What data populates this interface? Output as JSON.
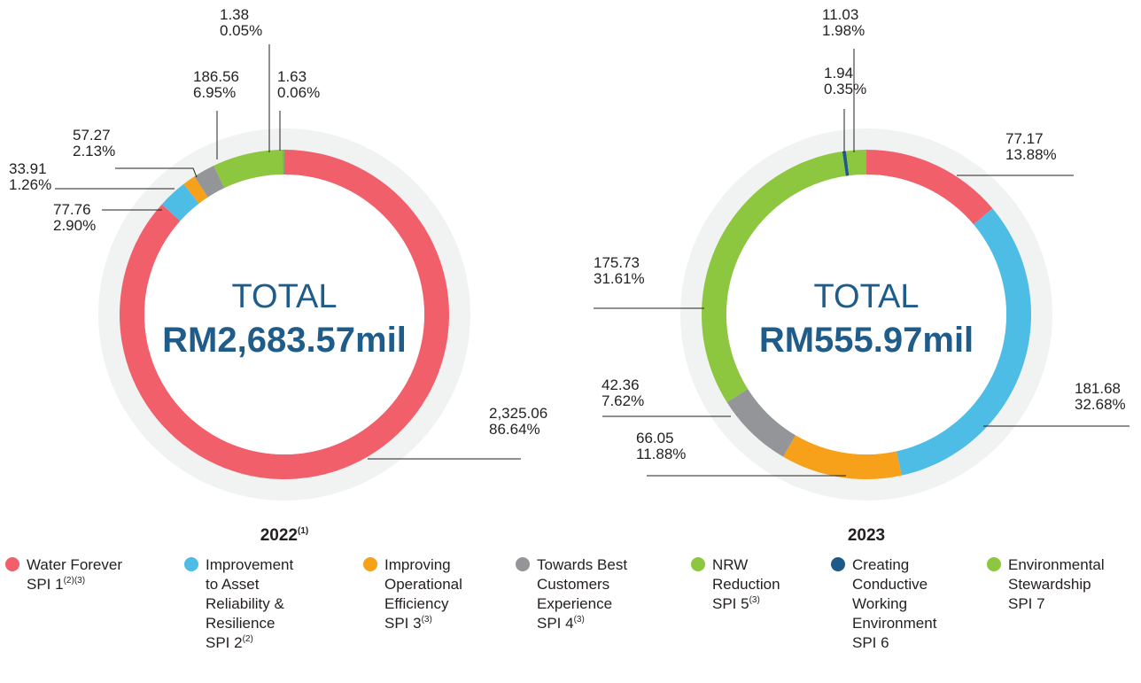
{
  "chart_data": [
    {
      "type": "donut",
      "title": "2022",
      "title_sup": "(1)",
      "center_label": "TOTAL",
      "total_label": "RM2,683.57mil",
      "values": [
        2325.06,
        77.76,
        33.91,
        57.27,
        186.56,
        1.38,
        1.63
      ],
      "value_labels": [
        "2,325.06",
        "77.76",
        "33.91",
        "57.27",
        "186.56",
        "1.38",
        "1.63"
      ],
      "percents": [
        86.64,
        2.9,
        1.26,
        2.13,
        6.95,
        0.05,
        0.06
      ],
      "percent_labels": [
        "86.64%",
        "2.90%",
        "1.26%",
        "2.13%",
        "6.95%",
        "0.05%",
        "0.06%"
      ]
    },
    {
      "type": "donut",
      "title": "2023",
      "center_label": "TOTAL",
      "total_label": "RM555.97mil",
      "values": [
        77.17,
        181.68,
        66.05,
        42.36,
        175.73,
        1.94,
        11.03
      ],
      "value_labels": [
        "77.17",
        "181.68",
        "66.05",
        "42.36",
        "175.73",
        "1.94",
        "11.03"
      ],
      "percents": [
        13.88,
        32.68,
        11.88,
        7.62,
        31.61,
        0.35,
        1.98
      ],
      "percent_labels": [
        "13.88%",
        "32.68%",
        "11.88%",
        "7.62%",
        "31.61%",
        "0.35%",
        "1.98%"
      ]
    }
  ],
  "legend": [
    {
      "lines": [
        "Water Forever"
      ],
      "spi": "SPI 1",
      "sup": "(2)(3)",
      "color": "#f15f6b"
    },
    {
      "lines": [
        "Improvement",
        "to Asset",
        "Reliability &",
        "Resilience"
      ],
      "spi": "SPI 2",
      "sup": "(2)",
      "color": "#4dbde6"
    },
    {
      "lines": [
        "Improving",
        "Operational",
        "Efficiency"
      ],
      "spi": "SPI 3",
      "sup": "(3)",
      "color": "#f7a11a"
    },
    {
      "lines": [
        "Towards Best",
        "Customers",
        "Experience"
      ],
      "spi": "SPI 4",
      "sup": "(3)",
      "color": "#939598"
    },
    {
      "lines": [
        "NRW",
        "Reduction"
      ],
      "spi": "SPI 5",
      "sup": "(3)",
      "color": "#8dc63f"
    },
    {
      "lines": [
        "Creating",
        "Conductive",
        "Working",
        "Environment"
      ],
      "spi": "SPI 6",
      "color": "#1c5a8c"
    },
    {
      "lines": [
        "Environmental",
        "Stewardship"
      ],
      "spi": "SPI 7",
      "color": "#8dc63f"
    }
  ]
}
